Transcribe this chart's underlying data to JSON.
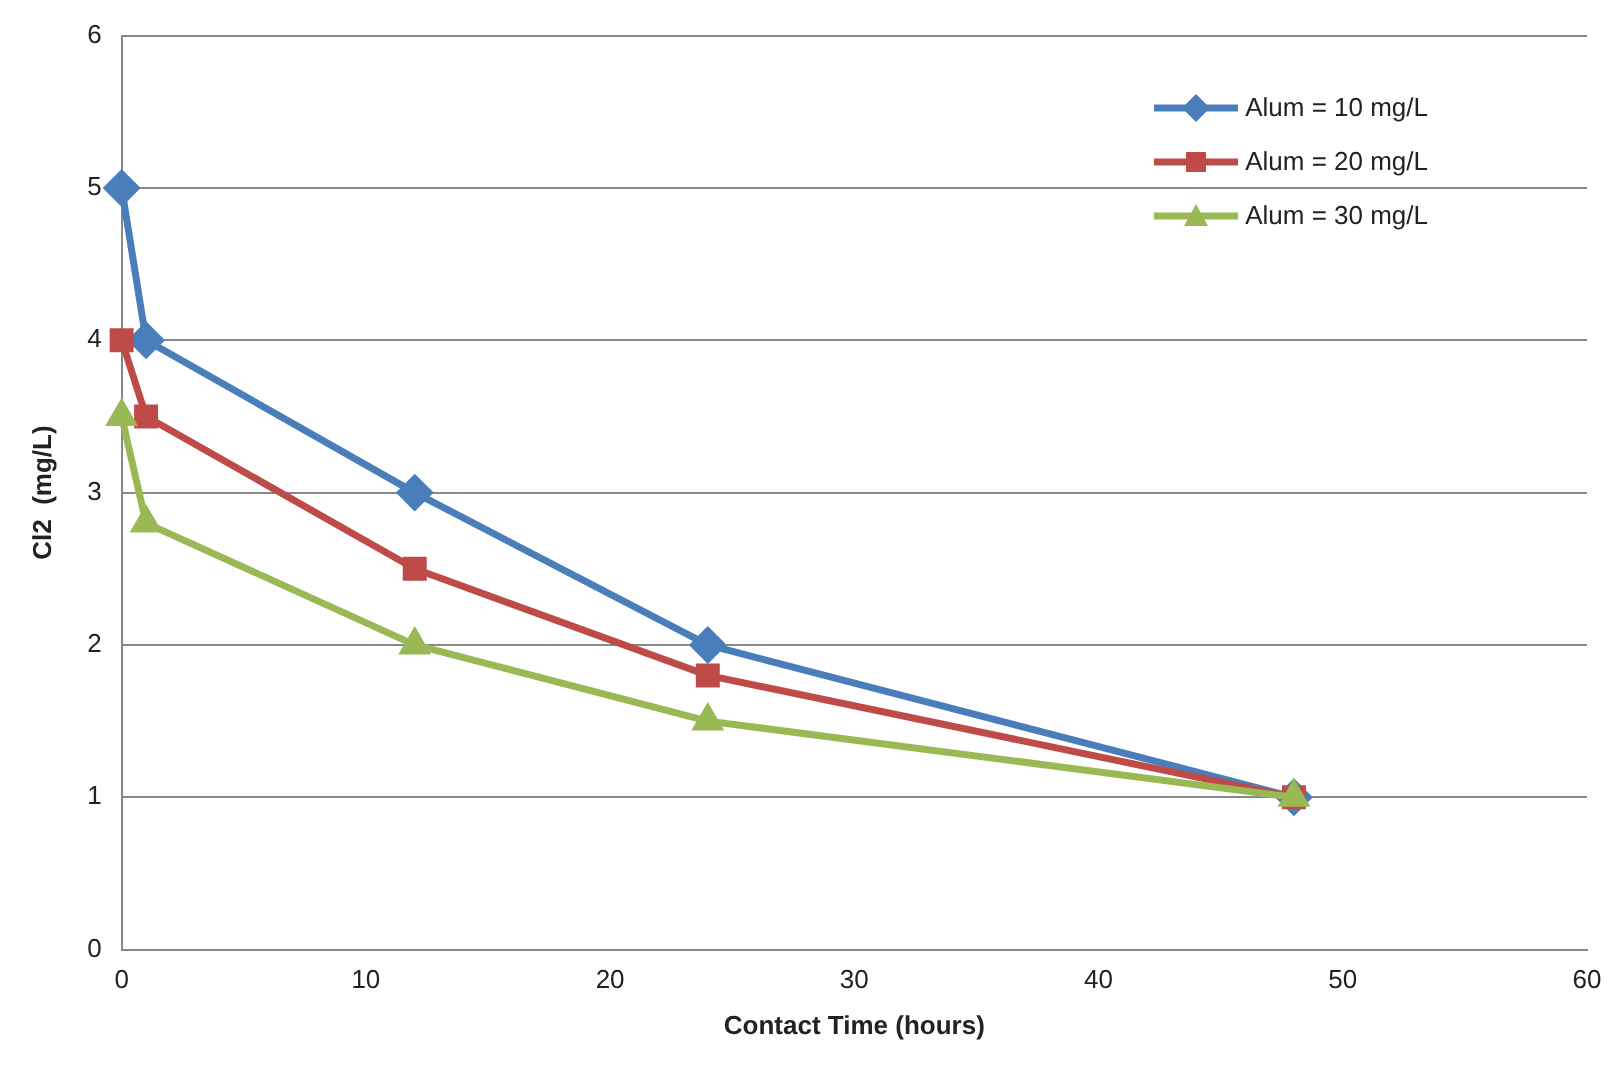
{
  "chart_data": {
    "type": "line",
    "xlabel": "Contact Time (hours)",
    "ylabel": "Cl2  (mg/L)",
    "xlim": [
      0,
      60
    ],
    "xticks": [
      0,
      10,
      20,
      30,
      40,
      50,
      60
    ],
    "ylim": [
      0,
      6
    ],
    "yticks": [
      0,
      1,
      2,
      3,
      4,
      5,
      6
    ],
    "grid": "y",
    "legend": "top right",
    "line_style": "solid",
    "series": [
      {
        "name": "Alum = 10 mg/L",
        "color": "#4a7ebb",
        "marker": "diamond",
        "x": [
          0,
          1,
          12,
          24,
          48
        ],
        "values": [
          5,
          4,
          3,
          2,
          1
        ]
      },
      {
        "name": "Alum = 20 mg/L",
        "color": "#be4b48",
        "marker": "square",
        "x": [
          0,
          1,
          12,
          24,
          48
        ],
        "values": [
          4,
          3.5,
          2.5,
          1.8,
          1
        ]
      },
      {
        "name": "Alum = 30 mg/L",
        "color": "#98b954",
        "marker": "triangle",
        "x": [
          0,
          1,
          12,
          24,
          48
        ],
        "values": [
          3.5,
          2.8,
          2,
          1.5,
          1
        ]
      }
    ]
  }
}
